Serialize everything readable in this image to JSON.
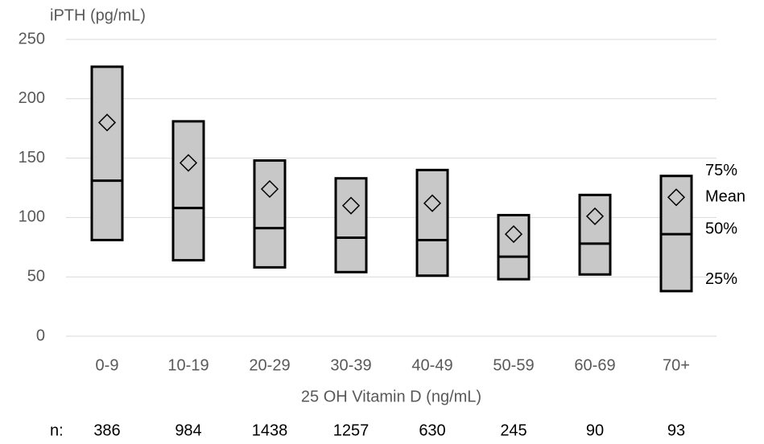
{
  "chart_data": {
    "type": "box",
    "title": "iPTH (pg/mL)",
    "x_label": "25 OH Vitamin D (ng/mL)",
    "categories": [
      "0-9",
      "10-19",
      "20-29",
      "30-39",
      "40-49",
      "50-59",
      "60-69",
      "70+"
    ],
    "series": [
      {
        "color": "#c8c8c8",
        "q1": [
          81,
          64,
          58,
          54,
          51,
          48,
          52,
          38
        ],
        "median": [
          131,
          108,
          91,
          83,
          81,
          67,
          78,
          86
        ],
        "q3": [
          227,
          181,
          148,
          133,
          140,
          102,
          119,
          135
        ],
        "mean": [
          180,
          146,
          124,
          110,
          112,
          86,
          101,
          117
        ]
      }
    ],
    "ylim": [
      0,
      250
    ],
    "yticks": [
      0,
      50,
      100,
      150,
      200,
      250
    ],
    "grid": true,
    "annotations": [
      "75%",
      "Mean",
      "50%",
      "25%"
    ],
    "n_label": "n:",
    "n_values": [
      "386",
      "984",
      "1438",
      "1257",
      "630",
      "245",
      "90",
      "93"
    ]
  }
}
